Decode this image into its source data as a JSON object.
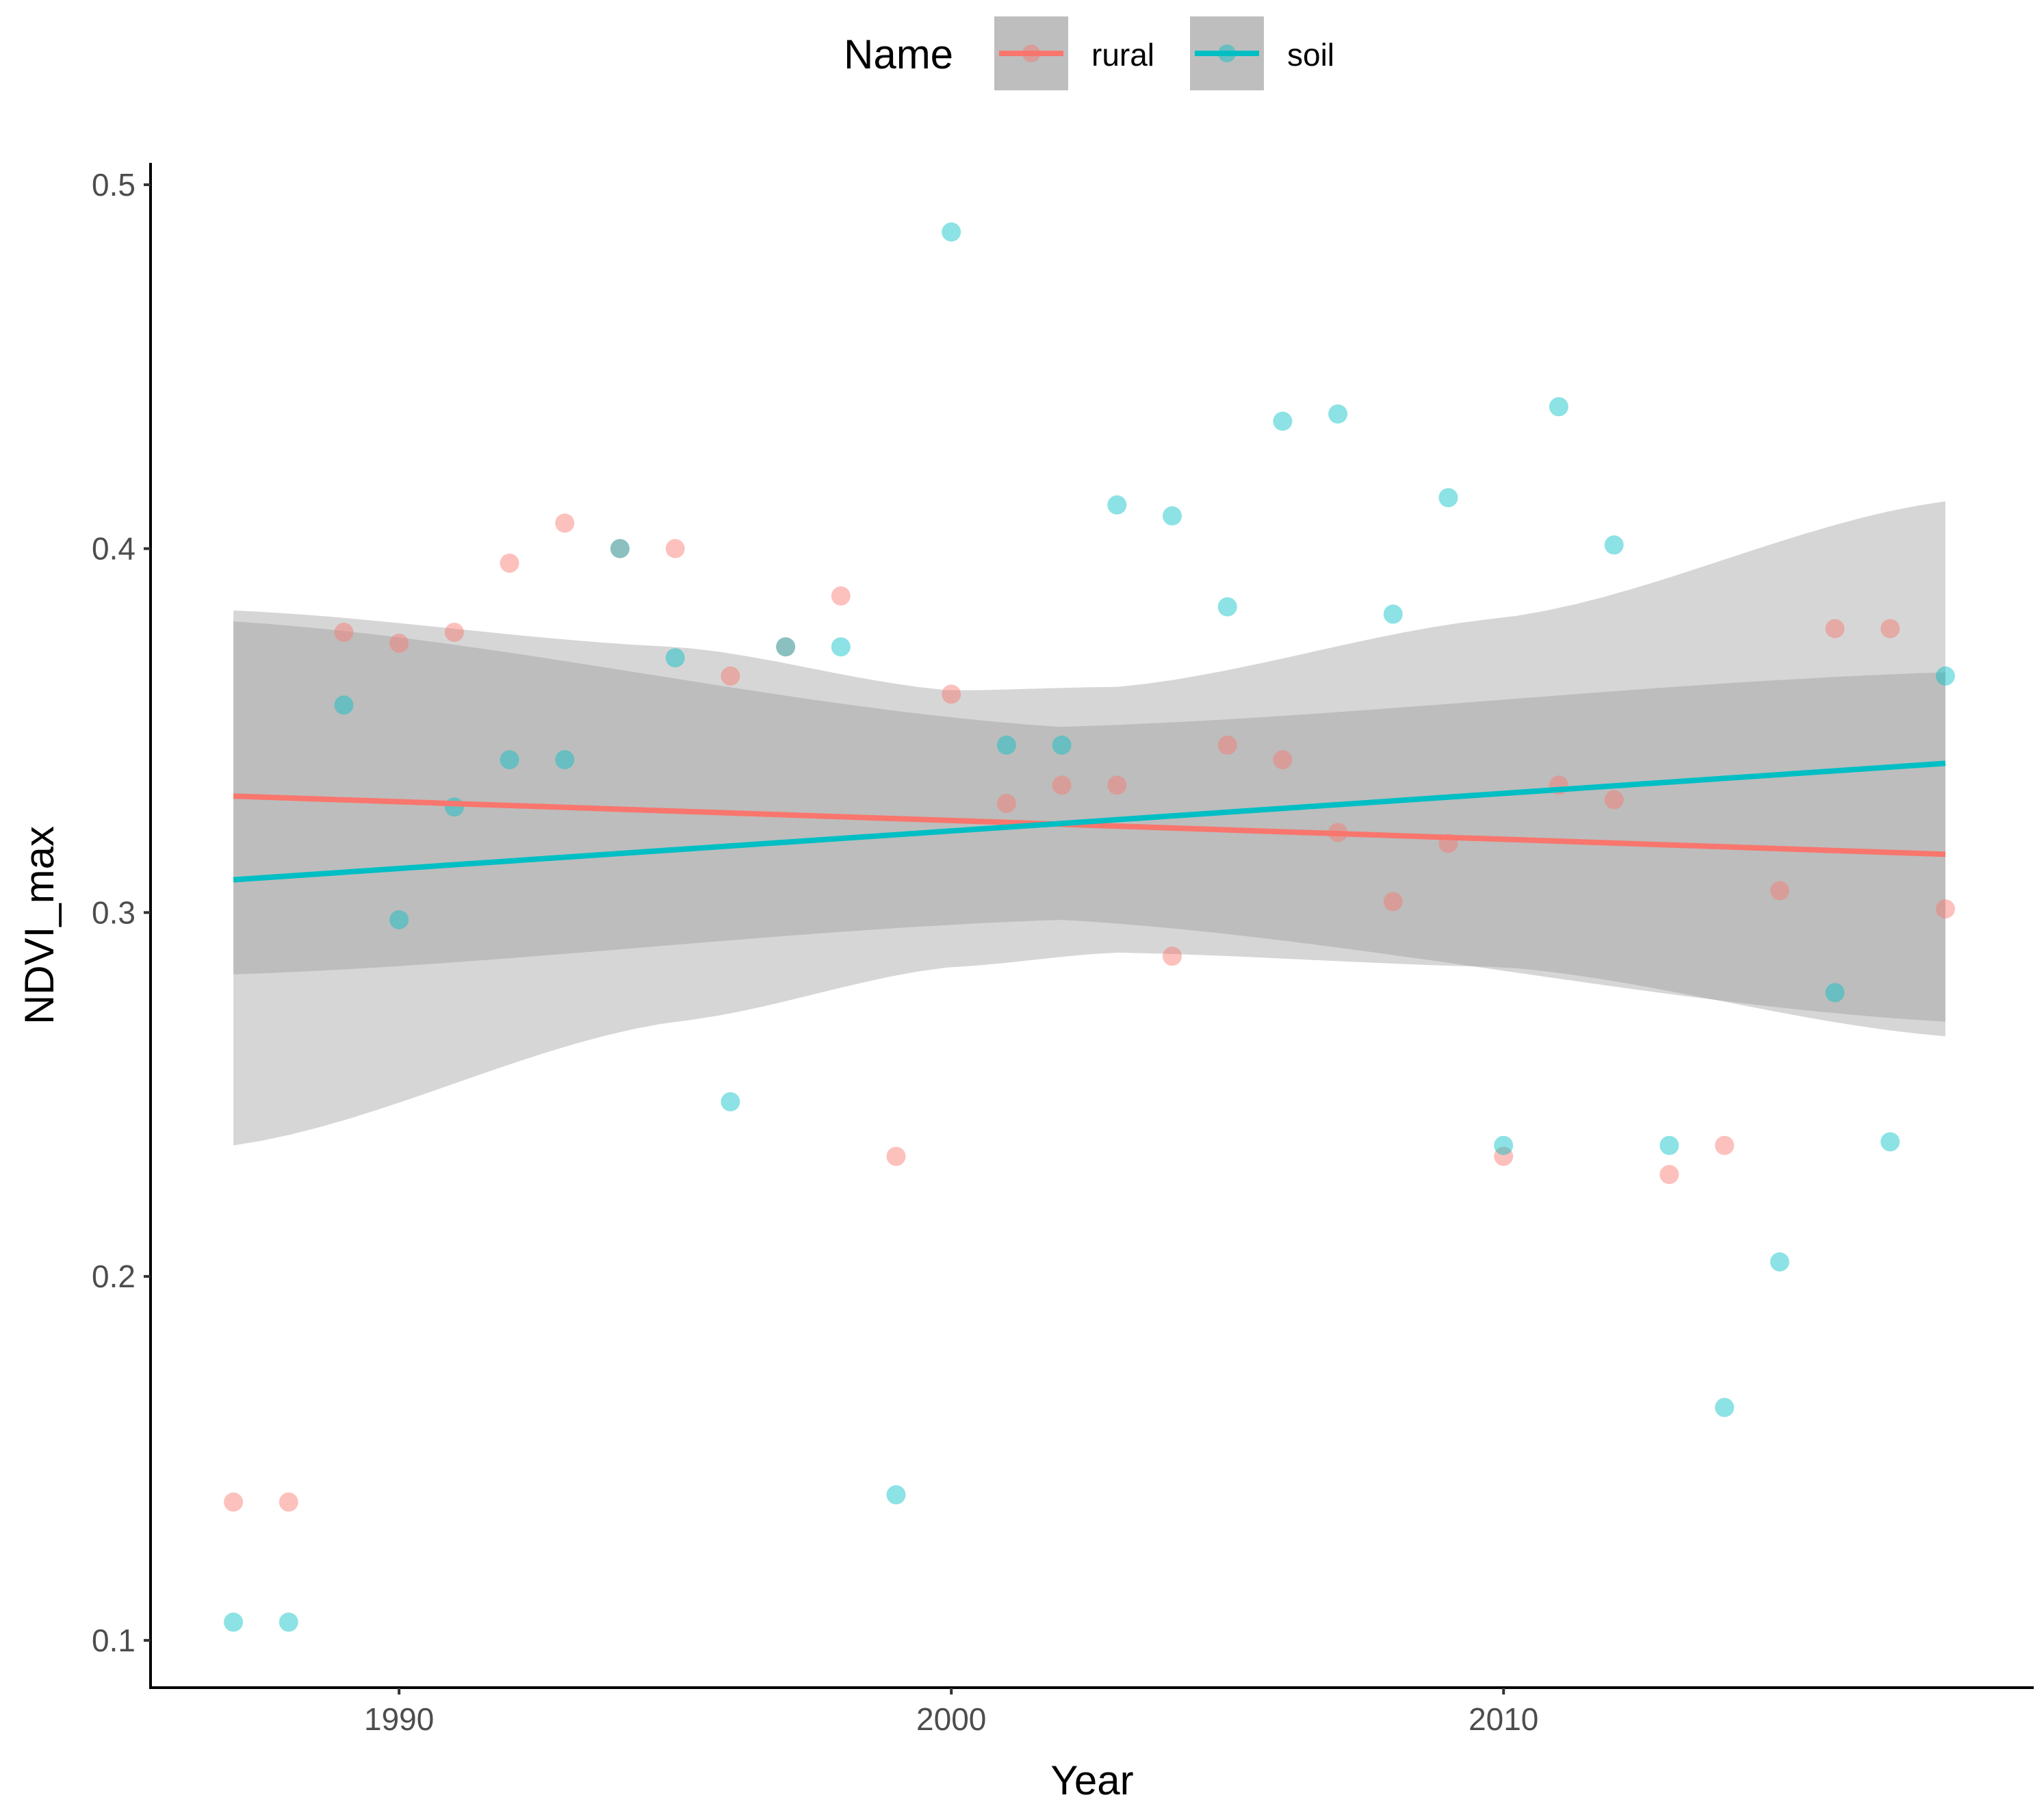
{
  "chart_data": {
    "type": "scatter",
    "title": "",
    "xlabel": "Year",
    "ylabel": "NDVI_max",
    "xlim": [
      1985.5,
      2019.6
    ],
    "ylim": [
      0.087,
      0.506
    ],
    "x_ticks": [
      1990,
      2000,
      2010
    ],
    "x_tick_labels": [
      "1990",
      "2000",
      "2010"
    ],
    "y_ticks": [
      0.1,
      0.2,
      0.3,
      0.4,
      0.5
    ],
    "y_tick_labels": [
      "0.1",
      "0.2",
      "0.3",
      "0.4",
      "0.5"
    ],
    "grid": false,
    "legend": {
      "title": "Name",
      "position": "top",
      "entries": [
        "rural",
        "soil"
      ]
    },
    "series": [
      {
        "name": "rural",
        "color": "#F8766D",
        "points": [
          [
            1987,
            0.138
          ],
          [
            1988,
            0.138
          ],
          [
            1989,
            0.377
          ],
          [
            1990,
            0.374
          ],
          [
            1991,
            0.377
          ],
          [
            1992,
            0.396
          ],
          [
            1993,
            0.407
          ],
          [
            1994,
            0.4
          ],
          [
            1995,
            0.4
          ],
          [
            1996,
            0.365
          ],
          [
            1997,
            0.373
          ],
          [
            1998,
            0.387
          ],
          [
            1999,
            0.233
          ],
          [
            2000,
            0.36
          ],
          [
            2001,
            0.33
          ],
          [
            2002,
            0.335
          ],
          [
            2003,
            0.335
          ],
          [
            2004,
            0.288
          ],
          [
            2005,
            0.346
          ],
          [
            2006,
            0.342
          ],
          [
            2007,
            0.322
          ],
          [
            2008,
            0.303
          ],
          [
            2009,
            0.319
          ],
          [
            2010,
            0.233
          ],
          [
            2011,
            0.335
          ],
          [
            2012,
            0.331
          ],
          [
            2013,
            0.228
          ],
          [
            2014,
            0.236
          ],
          [
            2015,
            0.306
          ],
          [
            2016,
            0.378
          ],
          [
            2017,
            0.378
          ],
          [
            2018,
            0.301
          ]
        ],
        "trend": {
          "start": [
            1987,
            0.332
          ],
          "end": [
            2018,
            0.316
          ]
        },
        "ci_upper": [
          [
            1987,
            0.38
          ],
          [
            2002,
            0.351
          ],
          [
            2018,
            0.366
          ]
        ],
        "ci_lower": [
          [
            1987,
            0.283
          ],
          [
            2002,
            0.298
          ],
          [
            2018,
            0.27
          ]
        ]
      },
      {
        "name": "soil",
        "color": "#00BFC4",
        "points": [
          [
            1987,
            0.105
          ],
          [
            1988,
            0.105
          ],
          [
            1989,
            0.357
          ],
          [
            1990,
            0.298
          ],
          [
            1991,
            0.329
          ],
          [
            1992,
            0.342
          ],
          [
            1993,
            0.342
          ],
          [
            1994,
            0.4
          ],
          [
            1995,
            0.37
          ],
          [
            1996,
            0.248
          ],
          [
            1997,
            0.373
          ],
          [
            1998,
            0.373
          ],
          [
            1999,
            0.14
          ],
          [
            2000,
            0.487
          ],
          [
            2001,
            0.346
          ],
          [
            2002,
            0.346
          ],
          [
            2003,
            0.412
          ],
          [
            2004,
            0.409
          ],
          [
            2005,
            0.384
          ],
          [
            2006,
            0.435
          ],
          [
            2007,
            0.437
          ],
          [
            2008,
            0.382
          ],
          [
            2009,
            0.414
          ],
          [
            2010,
            0.236
          ],
          [
            2011,
            0.439
          ],
          [
            2012,
            0.401
          ],
          [
            2013,
            0.236
          ],
          [
            2014,
            0.164
          ],
          [
            2015,
            0.204
          ],
          [
            2016,
            0.278
          ],
          [
            2017,
            0.237
          ],
          [
            2018,
            0.365
          ]
        ],
        "trend": {
          "start": [
            1987,
            0.309
          ],
          "end": [
            2018,
            0.341
          ]
        },
        "ci_upper": [
          [
            1987,
            0.383
          ],
          [
            1995,
            0.373
          ],
          [
            2000,
            0.361
          ],
          [
            2003,
            0.362
          ],
          [
            2010,
            0.381
          ],
          [
            2018,
            0.413
          ]
        ],
        "ci_lower": [
          [
            1987,
            0.236
          ],
          [
            1995,
            0.27
          ],
          [
            2000,
            0.285
          ],
          [
            2003,
            0.289
          ],
          [
            2010,
            0.285
          ],
          [
            2018,
            0.266
          ]
        ]
      }
    ]
  }
}
